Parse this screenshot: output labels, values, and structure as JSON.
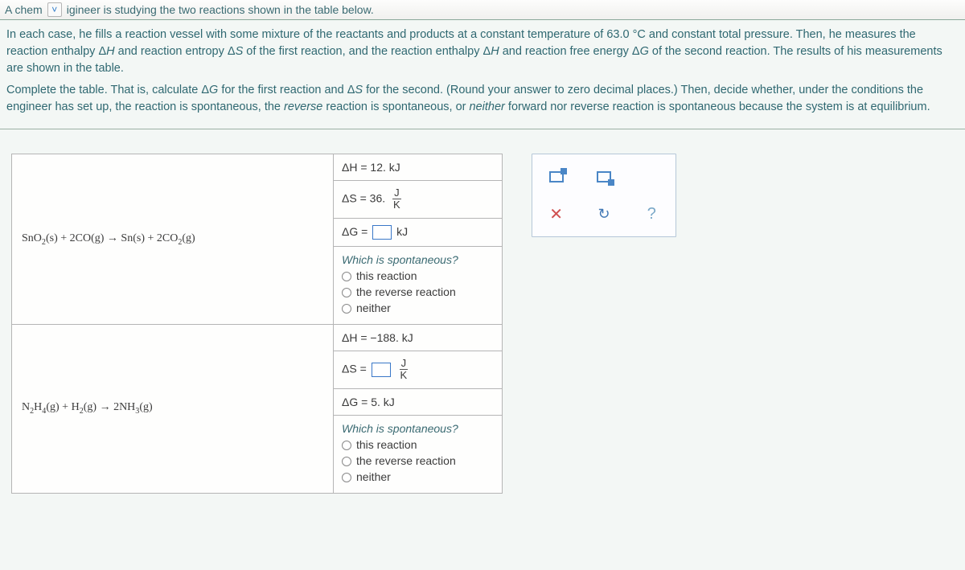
{
  "topbar": {
    "left": "A chem",
    "right": "igineer is studying the two reactions shown in the table below."
  },
  "problem": {
    "p1_a": "In each case, he fills a reaction vessel with some mixture of the reactants and products at a constant temperature of ",
    "temp": "63.0 °C",
    "p1_b": " and constant total pressure. Then, he measures the reaction enthalpy Δ",
    "p1_c": " and reaction entropy Δ",
    "p1_d": " of the first reaction, and the reaction enthalpy Δ",
    "p1_e": " and reaction free energy Δ",
    "p1_f": " of the second reaction. The results of his measurements are shown in the table.",
    "H": "H",
    "S": "S",
    "G": "G",
    "p2_a": "Complete the table. That is, calculate Δ",
    "p2_b": " for the first reaction and Δ",
    "p2_c": " for the second. (Round your answer to zero decimal places.) Then, decide whether, under the conditions the engineer has set up, the reaction is spontaneous, the ",
    "rev": "reverse",
    "p2_d": " reaction is spontaneous, or ",
    "nei": "neither",
    "p2_e": " forward nor reverse reaction is spontaneous because the system is at equilibrium."
  },
  "labels": {
    "dH": "ΔH = ",
    "dS": "ΔS = ",
    "dG": "ΔG = ",
    "kJ": "kJ",
    "J": "J",
    "K": "K",
    "which": "Which is spontaneous?",
    "opt1": "this reaction",
    "opt2": "the reverse reaction",
    "opt3": "neither"
  },
  "r1": {
    "eq_left": "SnO",
    "eq_sub1": "2",
    "eq_ph1": "(s)",
    "plus1": " + 2CO",
    "eq_ph2": "(g)",
    "arrow": " → ",
    "prod1": "Sn",
    "eq_ph3": "(s)",
    "plus2": " + 2CO",
    "eq_sub2": "2",
    "eq_ph4": "(g)",
    "dH_val": "12. kJ",
    "dS_val": "36.",
    "dG_unit": "kJ"
  },
  "r2": {
    "eq_left": "N",
    "s1": "2",
    "eq_mid1": "H",
    "s2": "4",
    "ph1": "(g)",
    "plus": " + H",
    "s3": "2",
    "ph2": "(g)",
    "arrow": " → ",
    "prod": "2NH",
    "s4": "3",
    "ph3": "(g)",
    "dH_val": "−188. kJ",
    "dG_val": "5. kJ"
  },
  "toolbar": {
    "reset_title": "Reset",
    "help_title": "Help",
    "clear_title": "Clear"
  }
}
